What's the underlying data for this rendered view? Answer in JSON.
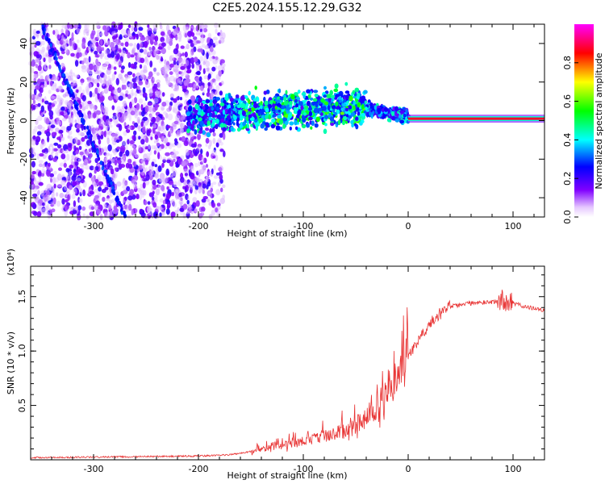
{
  "title": "C2E5.2024.155.12.29.G32",
  "colors": {
    "snr_line": "#e83232",
    "axis": "#000000",
    "background": "#ffffff"
  },
  "chart_data": [
    {
      "type": "heatmap",
      "name": "spectrogram",
      "xlabel": "Height of straight line (km)",
      "ylabel": "Frequency (Hz)",
      "xlim": [
        -360,
        130
      ],
      "ylim": [
        -50,
        50
      ],
      "xticks": [
        -300,
        -200,
        -100,
        0,
        100
      ],
      "yticks": [
        -40,
        -20,
        0,
        20,
        40
      ],
      "colorbar": {
        "label": "Normalized spectral amplitude",
        "range": [
          0,
          1
        ],
        "ticks": [
          "0.0",
          "0.2",
          "0.4",
          "0.6",
          "0.8"
        ],
        "colormap": [
          "#ffffff",
          "#8000ff",
          "#0000ff",
          "#00ffff",
          "#00ff00",
          "#ffff00",
          "#ff0000",
          "#ff00ff"
        ]
      },
      "features": {
        "noise_region_km": [
          -360,
          -175
        ],
        "tracking_band": {
          "x": [
            -210,
            -45,
            0
          ],
          "freq": [
            2,
            7,
            2
          ]
        },
        "carrier_line": {
          "x": [
            0,
            130
          ],
          "freq": 1
        },
        "diagonal_streak": {
          "from": [
            -350,
            50
          ],
          "to": [
            -270,
            -50
          ]
        }
      }
    },
    {
      "type": "line",
      "name": "snr",
      "xlabel": "Height of straight line (km)",
      "ylabel": "SNR (10 * v/v)",
      "multiplier_label": "(x10⁴)",
      "xlim": [
        -360,
        130
      ],
      "ylim": [
        0,
        1.78
      ],
      "xticks": [
        -300,
        -200,
        -100,
        0,
        100
      ],
      "yticks": [
        0.5,
        1.0,
        1.5
      ],
      "ytick_labels": [
        "0.5",
        "1.0",
        "1.5"
      ],
      "series": [
        {
          "name": "SNR",
          "x": [
            -360,
            -300,
            -250,
            -200,
            -180,
            -160,
            -140,
            -120,
            -100,
            -80,
            -60,
            -40,
            -30,
            -20,
            -10,
            0,
            10,
            20,
            30,
            40,
            60,
            80,
            90,
            100,
            110,
            120,
            130
          ],
          "y": [
            0.02,
            0.025,
            0.03,
            0.035,
            0.04,
            0.06,
            0.09,
            0.12,
            0.16,
            0.2,
            0.26,
            0.36,
            0.45,
            0.56,
            0.72,
            0.95,
            1.12,
            1.25,
            1.34,
            1.41,
            1.44,
            1.45,
            1.47,
            1.44,
            1.41,
            1.39,
            1.38
          ]
        }
      ]
    }
  ]
}
